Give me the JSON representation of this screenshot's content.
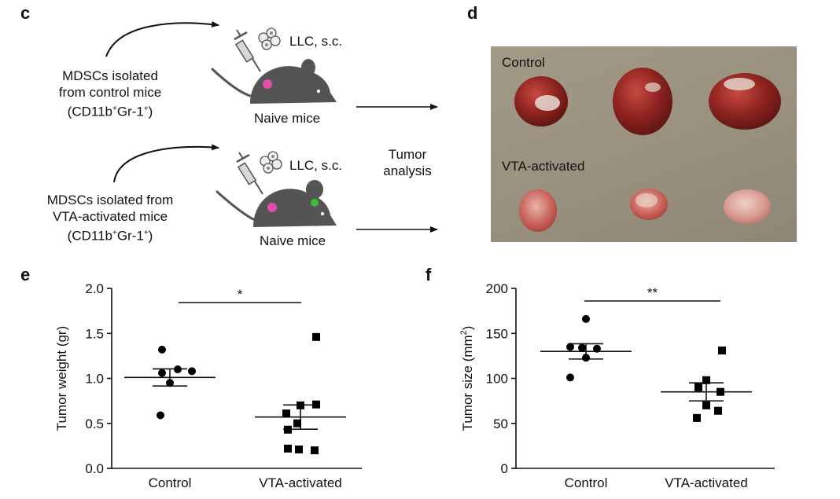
{
  "panel_c": {
    "letter": "c",
    "upper": {
      "source_lines": [
        "MDSCs isolated",
        "from control mice"
      ],
      "marker_base": "(CD11b",
      "marker_mid": "Gr-1",
      "marker_end": ")",
      "plus": "+",
      "injection": "LLC, s.c.",
      "mice": "Naive mice"
    },
    "lower": {
      "source_lines": [
        "MDSCs isolated from",
        "VTA-activated mice"
      ],
      "marker_base": "(CD11b",
      "marker_mid": "Gr-1",
      "marker_end": ")",
      "plus": "+",
      "injection": "LLC, s.c.",
      "mice": "Naive mice"
    },
    "analysis_lines": [
      "Tumor",
      "analysis"
    ],
    "colors": {
      "mouse": "#545454",
      "tumor_pink": "#e14ea8",
      "green_dot": "#3dbb3d"
    }
  },
  "panel_d": {
    "letter": "d",
    "row1_label": "Control",
    "row2_label": "VTA-activated"
  },
  "chart_data": [
    {
      "panel": "e",
      "type": "scatter",
      "ylabel": "Tumor weight (gr)",
      "ylim": [
        0.0,
        2.0
      ],
      "yticks": [
        "0.0",
        "0.5",
        "1.0",
        "1.5",
        "2.0"
      ],
      "categories": [
        "Control",
        "VTA-activated"
      ],
      "significance": "*",
      "series": [
        {
          "name": "Control",
          "marker": "circle",
          "mean": 1.01,
          "sem": 0.095,
          "values": [
            1.32,
            1.1,
            1.06,
            1.08,
            0.95,
            0.59
          ]
        },
        {
          "name": "VTA-activated",
          "marker": "square",
          "mean": 0.57,
          "sem": 0.135,
          "values": [
            1.46,
            0.71,
            0.7,
            0.61,
            0.5,
            0.43,
            0.22,
            0.21,
            0.2
          ]
        }
      ]
    },
    {
      "panel": "f",
      "type": "scatter",
      "ylabel": "Tumor size (mm",
      "ylabel_sup": "2",
      "ylabel_end": ")",
      "ylim": [
        0,
        200
      ],
      "yticks": [
        "0",
        "50",
        "100",
        "150",
        "200"
      ],
      "categories": [
        "Control",
        "VTA-activated"
      ],
      "significance": "**",
      "series": [
        {
          "name": "Control",
          "marker": "circle",
          "mean": 130,
          "sem": 8.5,
          "values": [
            166,
            135,
            134,
            133,
            123,
            101
          ]
        },
        {
          "name": "VTA-activated",
          "marker": "square",
          "mean": 85,
          "sem": 10,
          "values": [
            131,
            98,
            90,
            85,
            70,
            64,
            56
          ]
        }
      ]
    }
  ]
}
